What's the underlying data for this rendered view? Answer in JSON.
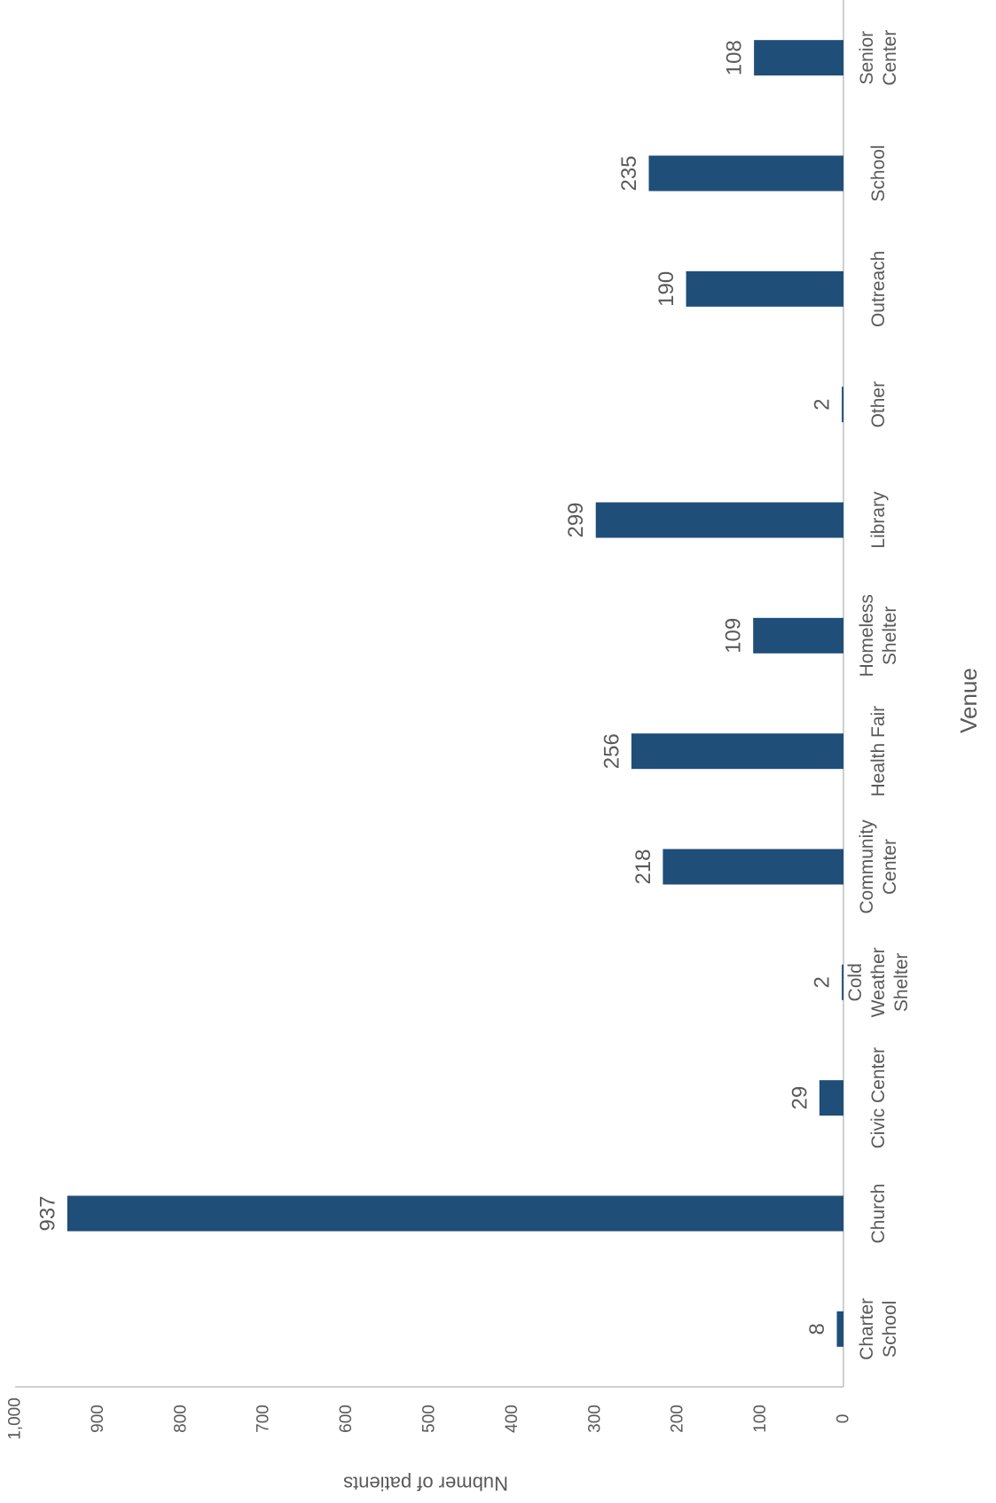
{
  "chart_data": {
    "type": "bar",
    "orientation": "rotated-90",
    "categories": [
      "Charter School",
      "Church",
      "Civic Center",
      "Cold Weather Shelter",
      "Community Center",
      "Health Fair",
      "Homeless Shelter",
      "Library",
      "Other",
      "Outreach",
      "School",
      "Senior Center"
    ],
    "category_lines": [
      [
        "Charter",
        "School"
      ],
      [
        "Church"
      ],
      [
        "Civic Center"
      ],
      [
        "Cold",
        "Weather",
        "Shelter"
      ],
      [
        "Community",
        "Center"
      ],
      [
        "Health Fair"
      ],
      [
        "Homeless",
        "Shelter"
      ],
      [
        "Library"
      ],
      [
        "Other"
      ],
      [
        "Outreach"
      ],
      [
        "School"
      ],
      [
        "Senior",
        "Center"
      ]
    ],
    "values": [
      8,
      937,
      29,
      2,
      218,
      256,
      109,
      299,
      2,
      190,
      235,
      108
    ],
    "data_labels": [
      "8",
      "937",
      "29",
      "2",
      "218",
      "256",
      "109",
      "299",
      "2",
      "190",
      "235",
      "108"
    ],
    "xlabel": "Venue",
    "ylabel": "Nubmer of patients",
    "ylim": [
      0,
      1000
    ],
    "yticks": [
      "0",
      "100",
      "200",
      "300",
      "400",
      "500",
      "600",
      "700",
      "800",
      "900",
      "1,000"
    ],
    "bar_color": "#1f4e79",
    "grid": false,
    "legend": "none"
  }
}
